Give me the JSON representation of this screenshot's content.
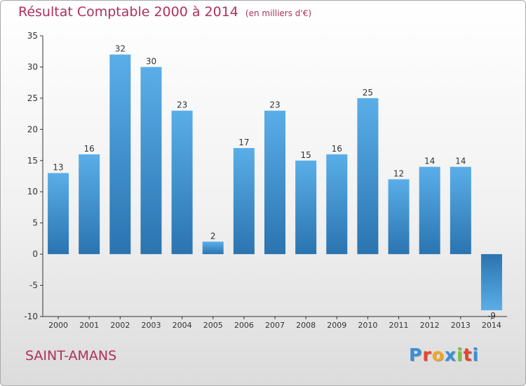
{
  "header": {
    "title": "Résultat Comptable 2000 à 2014",
    "unit": "(en milliers d'€)"
  },
  "footer": {
    "commune": "SAINT-AMANS",
    "logo": "Proxiti"
  },
  "colors": {
    "bar_light": "#5aaee8",
    "bar_dark": "#2a74b0",
    "title": "#b0305a",
    "axis": "#333333"
  },
  "chart_data": {
    "type": "bar",
    "title": "Résultat Comptable 2000 à 2014",
    "subtitle": "(en milliers d'€)",
    "xlabel": "",
    "ylabel": "",
    "categories": [
      "2000",
      "2001",
      "2002",
      "2003",
      "2004",
      "2005",
      "2006",
      "2007",
      "2008",
      "2009",
      "2010",
      "2011",
      "2012",
      "2013",
      "2014"
    ],
    "values": [
      13,
      16,
      32,
      30,
      23,
      2,
      17,
      23,
      15,
      16,
      25,
      12,
      14,
      14,
      -9
    ],
    "ylim": [
      -10,
      35
    ],
    "yticks": [
      -10,
      -5,
      0,
      5,
      10,
      15,
      20,
      25,
      30,
      35
    ],
    "grid": false,
    "legend": "none"
  }
}
